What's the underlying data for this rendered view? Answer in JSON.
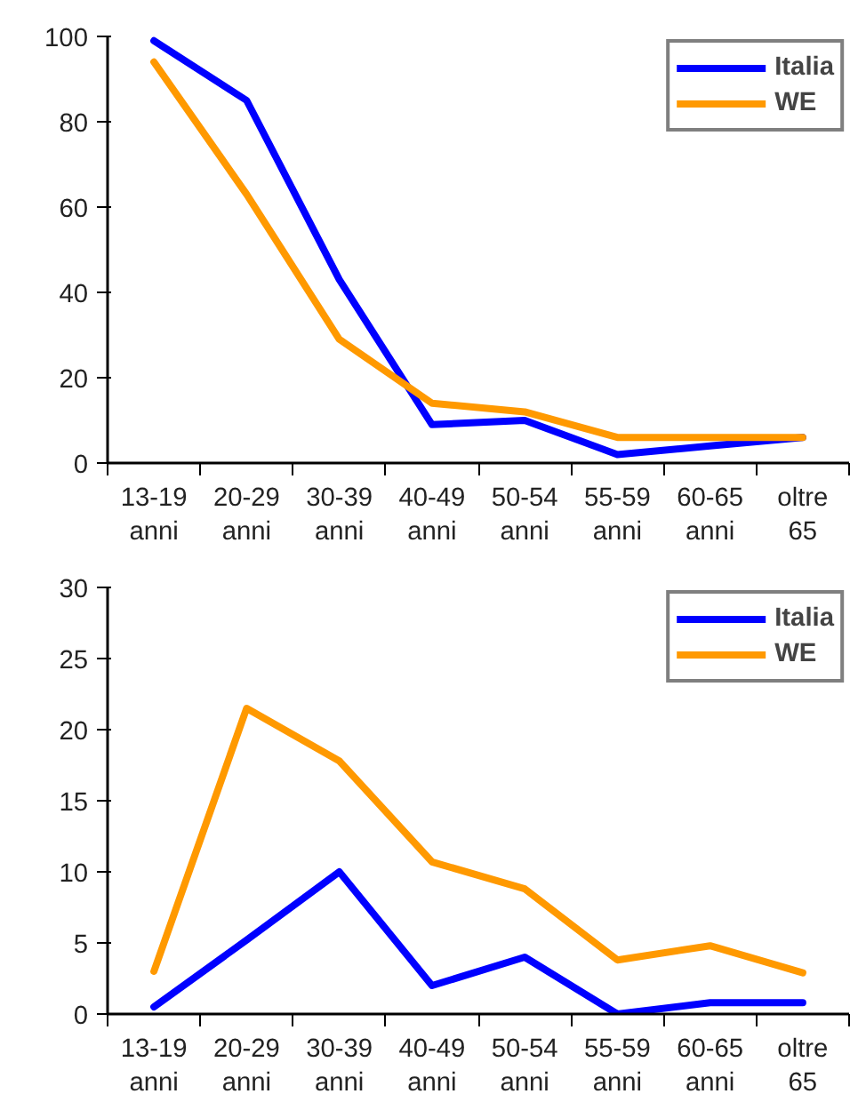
{
  "chart_data": [
    {
      "type": "line",
      "categories": [
        "13-19 anni",
        "20-29 anni",
        "30-39 anni",
        "40-49 anni",
        "50-54 anni",
        "55-59 anni",
        "60-65 anni",
        "oltre 65"
      ],
      "ylim": [
        0,
        100
      ],
      "yticks": [
        0,
        20,
        40,
        60,
        80,
        100
      ],
      "grid": false,
      "legend": "top right",
      "series": [
        {
          "name": "Italia",
          "color": "#0000ff",
          "values": [
            99,
            85,
            43,
            9,
            10,
            2,
            4,
            6
          ]
        },
        {
          "name": "WE",
          "color": "#ff9900",
          "values": [
            94,
            63,
            29,
            14,
            12,
            6,
            6,
            6
          ]
        }
      ]
    },
    {
      "type": "line",
      "categories": [
        "13-19 anni",
        "20-29 anni",
        "30-39 anni",
        "40-49 anni",
        "50-54 anni",
        "55-59 anni",
        "60-65 anni",
        "oltre 65"
      ],
      "ylim": [
        0,
        30
      ],
      "yticks": [
        0,
        5,
        10,
        15,
        20,
        25,
        30
      ],
      "grid": false,
      "legend": "top right",
      "series": [
        {
          "name": "Italia",
          "color": "#0000ff",
          "values": [
            0.5,
            5.2,
            10,
            2,
            4,
            0,
            0.8,
            0.8
          ]
        },
        {
          "name": "WE",
          "color": "#ff9900",
          "values": [
            3,
            21.5,
            17.8,
            10.7,
            8.8,
            3.8,
            4.8,
            2.9
          ]
        }
      ]
    }
  ]
}
